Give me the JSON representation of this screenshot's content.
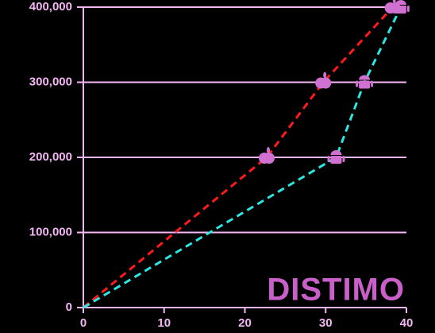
{
  "chart_data": {
    "type": "line",
    "series": [
      {
        "color": "#ff1a1a",
        "marker": "apple",
        "x": [
          0,
          22.7,
          29.7,
          38.3
        ],
        "values": [
          0,
          200000,
          300000,
          400000
        ]
      },
      {
        "color": "#2ee6e0",
        "marker": "android",
        "x": [
          0,
          31.3,
          34.8,
          39.3
        ],
        "values": [
          0,
          200000,
          300000,
          400000
        ]
      }
    ],
    "marker_color": "#d070d0",
    "xlim": [
      0,
      40
    ],
    "xticks": [
      0,
      10,
      20,
      30,
      40
    ],
    "ylim": [
      0,
      400000
    ],
    "yticks": [
      0,
      {
        "value": 100000,
        "label": "100,000"
      },
      {
        "value": 200000,
        "label": "200,000"
      },
      {
        "value": 300000,
        "label": "300,000"
      },
      {
        "value": 400000,
        "label": "400,000"
      }
    ],
    "grid": true,
    "watermark": "DISTIMO"
  }
}
